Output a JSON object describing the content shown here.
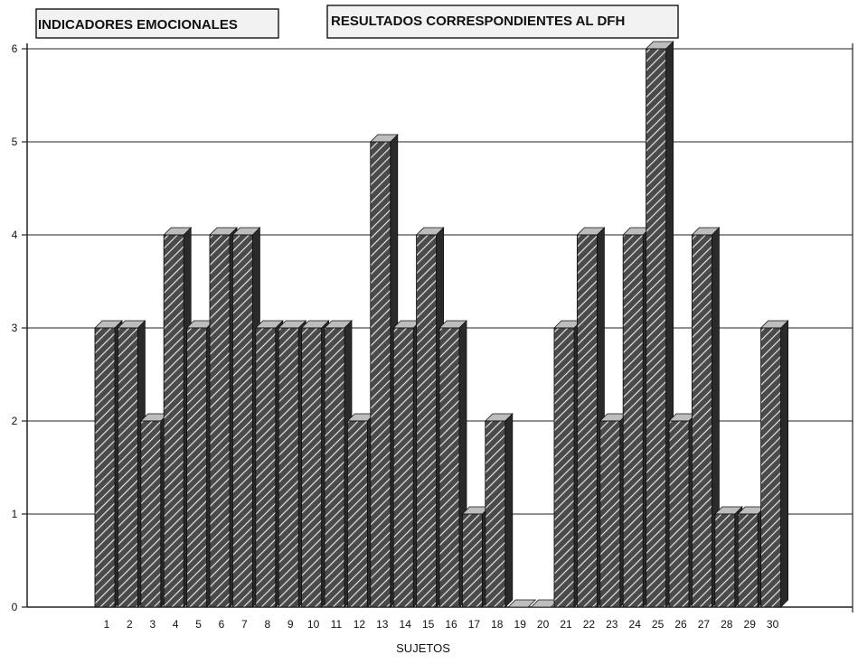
{
  "chart_data": {
    "type": "bar",
    "title_left": "INDICADORES EMOCIONALES",
    "title_right": "RESULTADOS CORRESPONDIENTES AL DFH",
    "xlabel": "SUJETOS",
    "ylabel": "",
    "ylim": [
      0,
      6
    ],
    "yticks": [
      "0",
      "1",
      "2",
      "3",
      "4",
      "5",
      "6"
    ],
    "categories": [
      "1",
      "2",
      "3",
      "4",
      "5",
      "6",
      "7",
      "8",
      "9",
      "10",
      "11",
      "12",
      "13",
      "14",
      "15",
      "16",
      "17",
      "18",
      "19",
      "20",
      "21",
      "22",
      "23",
      "24",
      "25",
      "26",
      "27",
      "28",
      "29",
      "30"
    ],
    "values": [
      3,
      3,
      2,
      4,
      3,
      4,
      4,
      3,
      3,
      3,
      3,
      2,
      5,
      3,
      4,
      3,
      1,
      2,
      0,
      0,
      3,
      4,
      2,
      4,
      6,
      2,
      4,
      1,
      1,
      3
    ],
    "grid": true,
    "pattern": "diagonal-hatch"
  },
  "colors": {
    "bar_fill": "#5a5a5a",
    "hatch": "#e6e6e6",
    "bar_top": "#bdbdbd",
    "bar_side": "#2a2a2a",
    "grid": "#222222"
  }
}
